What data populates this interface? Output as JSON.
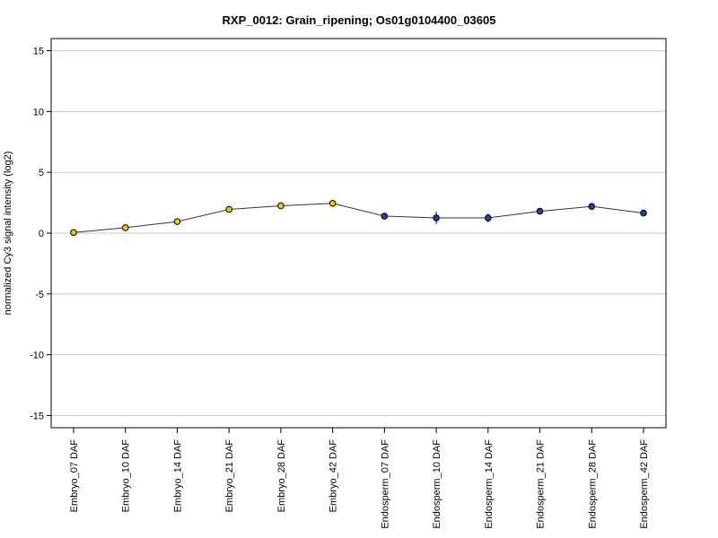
{
  "chart_data": {
    "type": "line",
    "title": "RXP_0012: Grain_ripening; Os01g0104400_03605",
    "xlabel": "",
    "ylabel": "normalized Cy3 signal intensity (log2)",
    "ylim": [
      -16,
      16
    ],
    "yticks": [
      -15,
      -10,
      -5,
      0,
      5,
      10,
      15
    ],
    "grid": true,
    "categories": [
      "Embryo_07 DAF",
      "Embryo_10 DAF",
      "Embryo_14 DAF",
      "Embryo_21 DAF",
      "Embryo_28 DAF",
      "Embryo_42 DAF",
      "Endosperm_07 DAF",
      "Endosperm_10 DAF",
      "Endosperm_14 DAF",
      "Endosperm_21 DAF",
      "Endosperm_28 DAF",
      "Endosperm_42 DAF"
    ],
    "values": [
      0.05,
      0.45,
      0.95,
      1.95,
      2.25,
      2.45,
      1.4,
      1.25,
      1.25,
      1.8,
      2.2,
      1.65
    ],
    "errors": [
      0,
      0,
      0,
      0,
      0,
      0,
      0,
      0.5,
      0.35,
      0,
      0,
      0
    ],
    "point_colors": [
      "#f1c40f",
      "#f1c40f",
      "#f1c40f",
      "#f1c40f",
      "#f1c40f",
      "#f1c40f",
      "#1f3fb8",
      "#1f3fb8",
      "#1f3fb8",
      "#1f3fb8",
      "#1f3fb8",
      "#1f3fb8"
    ],
    "line_color": "#333333",
    "grid_color": "#c8c8c8"
  }
}
